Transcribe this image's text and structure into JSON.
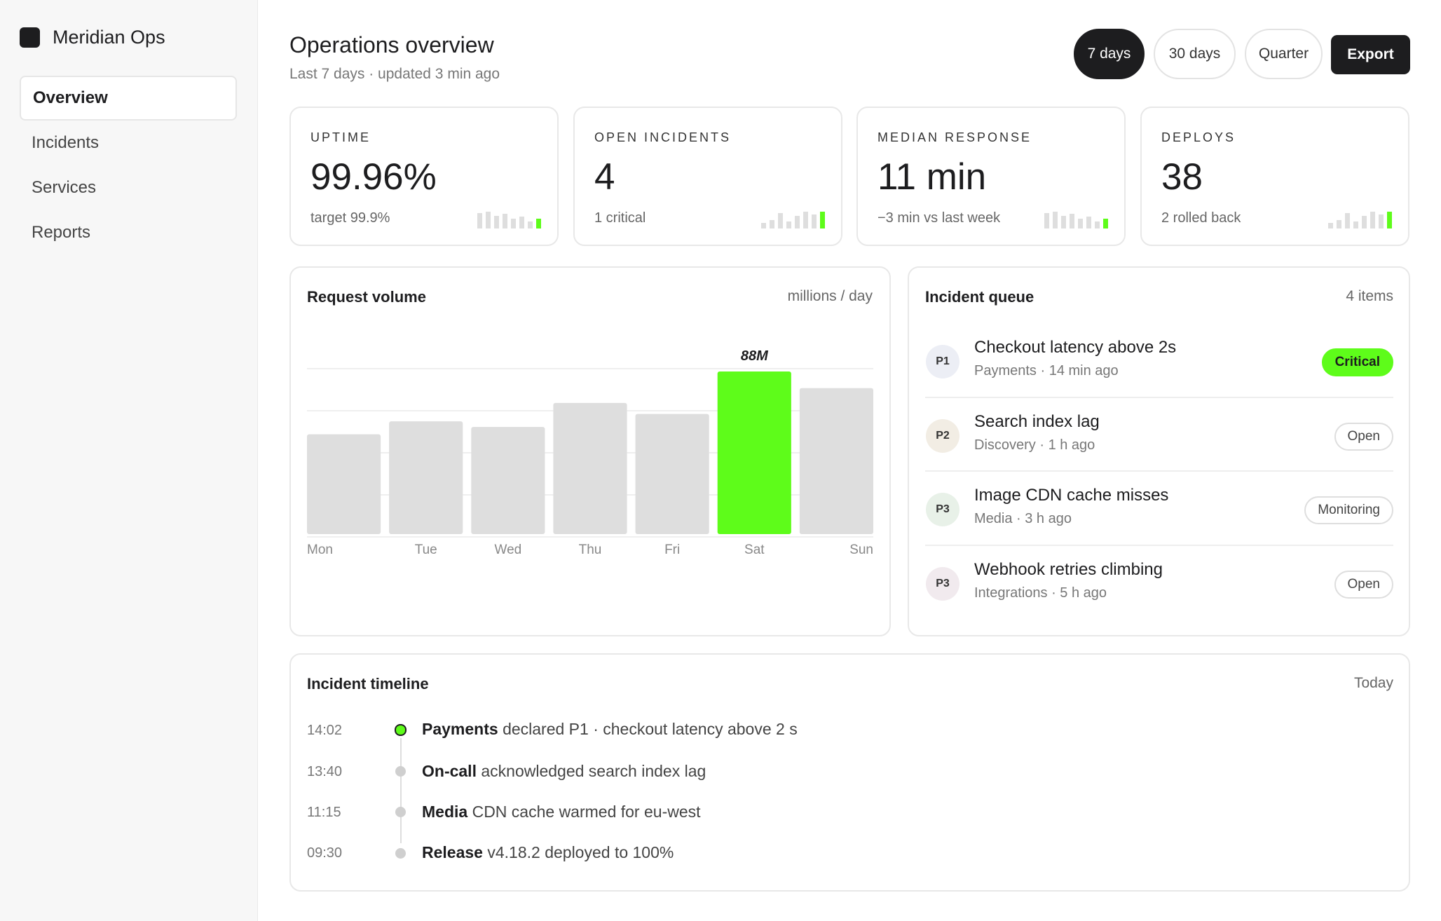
{
  "sidebar": {
    "brand": "Meridian Ops",
    "items": [
      {
        "label": "Overview",
        "active": true
      },
      {
        "label": "Incidents"
      },
      {
        "label": "Services"
      },
      {
        "label": "Reports"
      }
    ]
  },
  "header": {
    "title": "Operations overview",
    "subtitle": "Last 7 days · updated 3 min ago",
    "ranges": [
      "7 days",
      "30 days",
      "Quarter"
    ],
    "active_range": "7 days",
    "export_label": "Export"
  },
  "kpis": [
    {
      "label": "UPTIME",
      "value": "99.96%",
      "note": "target 99.9%"
    },
    {
      "label": "OPEN INCIDENTS",
      "value": "4",
      "note": "1 critical"
    },
    {
      "label": "MEDIAN RESPONSE",
      "value": "11 min",
      "note": "−3 min vs last week"
    },
    {
      "label": "DEPLOYS",
      "value": "38",
      "note": "2 rolled back"
    }
  ],
  "request_volume": {
    "title": "Request volume",
    "unit": "millions / day",
    "highlight_label": "88M"
  },
  "chart_data": {
    "type": "bar",
    "categories": [
      "Mon",
      "Tue",
      "Wed",
      "Thu",
      "Fri",
      "Sat",
      "Sun"
    ],
    "values": [
      54,
      61,
      58,
      71,
      65,
      88,
      79
    ],
    "highlight": "Sat",
    "colors": {
      "default": "#dedede",
      "highlight": "#5efc1a"
    },
    "grid": true
  },
  "incident_queue": {
    "title": "Incident queue",
    "count": "4 items",
    "items": [
      {
        "priority": "P1",
        "title": "Checkout latency above 2s",
        "meta": "Payments · 14 min ago",
        "status": "Critical"
      },
      {
        "priority": "P2",
        "title": "Search index lag",
        "meta": "Discovery · 1 h ago",
        "status": "Open"
      },
      {
        "priority": "P3",
        "title": "Image CDN cache misses",
        "meta": "Media · 3 h ago",
        "status": "Monitoring"
      },
      {
        "priority": "P3",
        "title": "Webhook retries climbing",
        "meta": "Integrations · 5 h ago",
        "status": "Open"
      }
    ]
  },
  "timeline": {
    "title": "Incident timeline",
    "period": "Today",
    "events": [
      {
        "time": "14:02",
        "actor": "Payments",
        "text": "declared P1 · checkout latency above 2 s"
      },
      {
        "time": "13:40",
        "actor": "On-call",
        "text": "acknowledged search index lag"
      },
      {
        "time": "11:15",
        "actor": "Media",
        "text": "CDN cache warmed for eu-west"
      },
      {
        "time": "09:30",
        "actor": "Release",
        "text": "v4.18.2 deployed to 100%"
      }
    ]
  },
  "colors": {
    "accent": "#5efc1a",
    "ink": "#1d1d1f"
  }
}
